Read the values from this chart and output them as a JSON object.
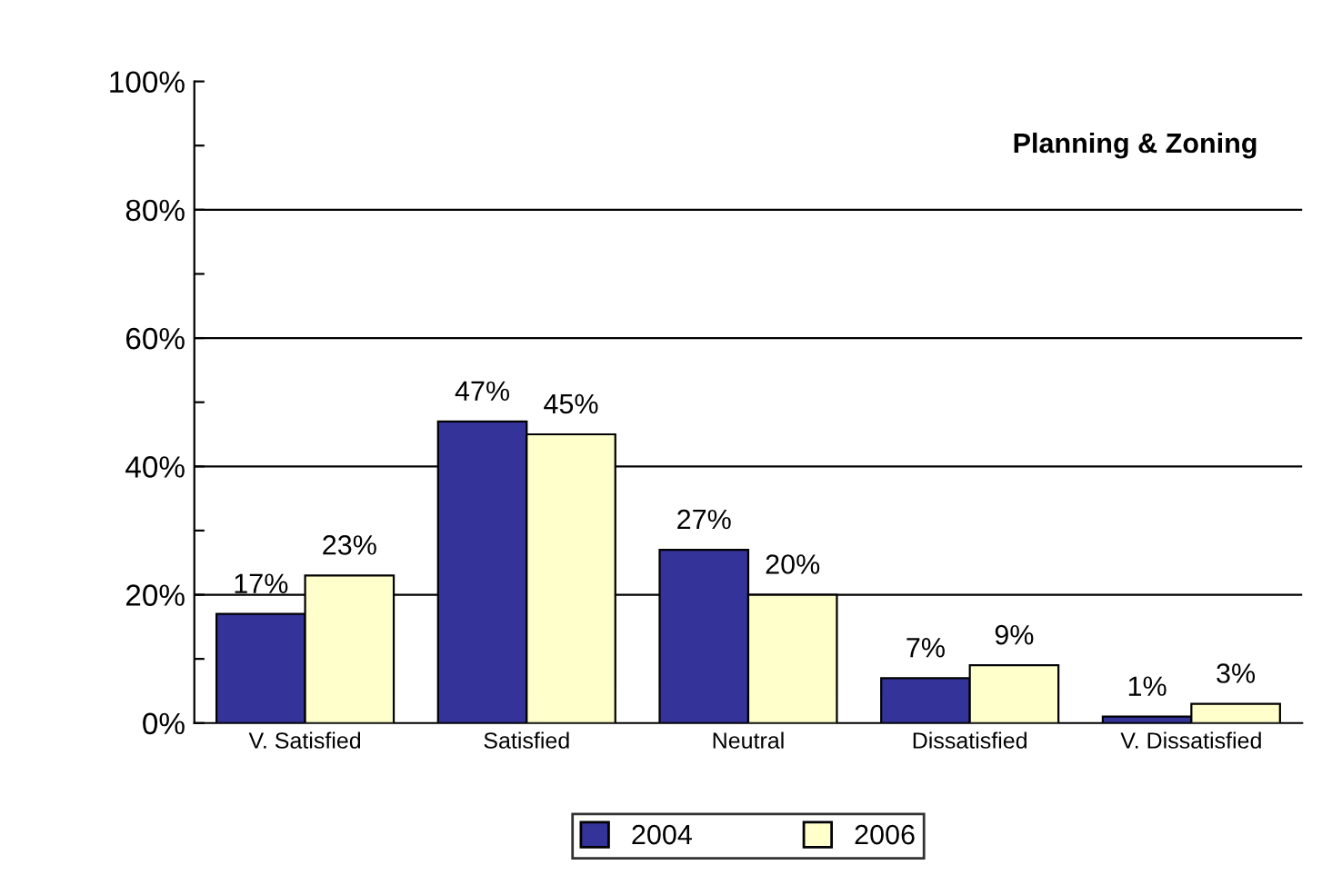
{
  "chart_data": {
    "type": "bar",
    "title": "Planning & Zoning",
    "categories": [
      "V. Satisfied",
      "Satisfied",
      "Neutral",
      "Dissatisfied",
      "V. Dissatisfied"
    ],
    "series": [
      {
        "name": "2004",
        "color": "#333399",
        "values": [
          17,
          47,
          27,
          7,
          1
        ],
        "value_labels": [
          "17%",
          "47%",
          "27%",
          "7%",
          "1%"
        ]
      },
      {
        "name": "2006",
        "color": "#ffffcc",
        "values": [
          23,
          45,
          20,
          9,
          3
        ],
        "value_labels": [
          "23%",
          "45%",
          "20%",
          "9%",
          "3%"
        ]
      }
    ],
    "ylim": [
      0,
      100
    ],
    "yticks": [
      {
        "value": 0,
        "label": "0%"
      },
      {
        "value": 10,
        "label": null
      },
      {
        "value": 20,
        "label": "20%"
      },
      {
        "value": 30,
        "label": null
      },
      {
        "value": 40,
        "label": "40%"
      },
      {
        "value": 50,
        "label": null
      },
      {
        "value": 60,
        "label": "60%"
      },
      {
        "value": 70,
        "label": null
      },
      {
        "value": 80,
        "label": "80%"
      },
      {
        "value": 90,
        "label": null
      },
      {
        "value": 100,
        "label": "100%"
      }
    ],
    "grid": "y",
    "legend": "bottom"
  }
}
